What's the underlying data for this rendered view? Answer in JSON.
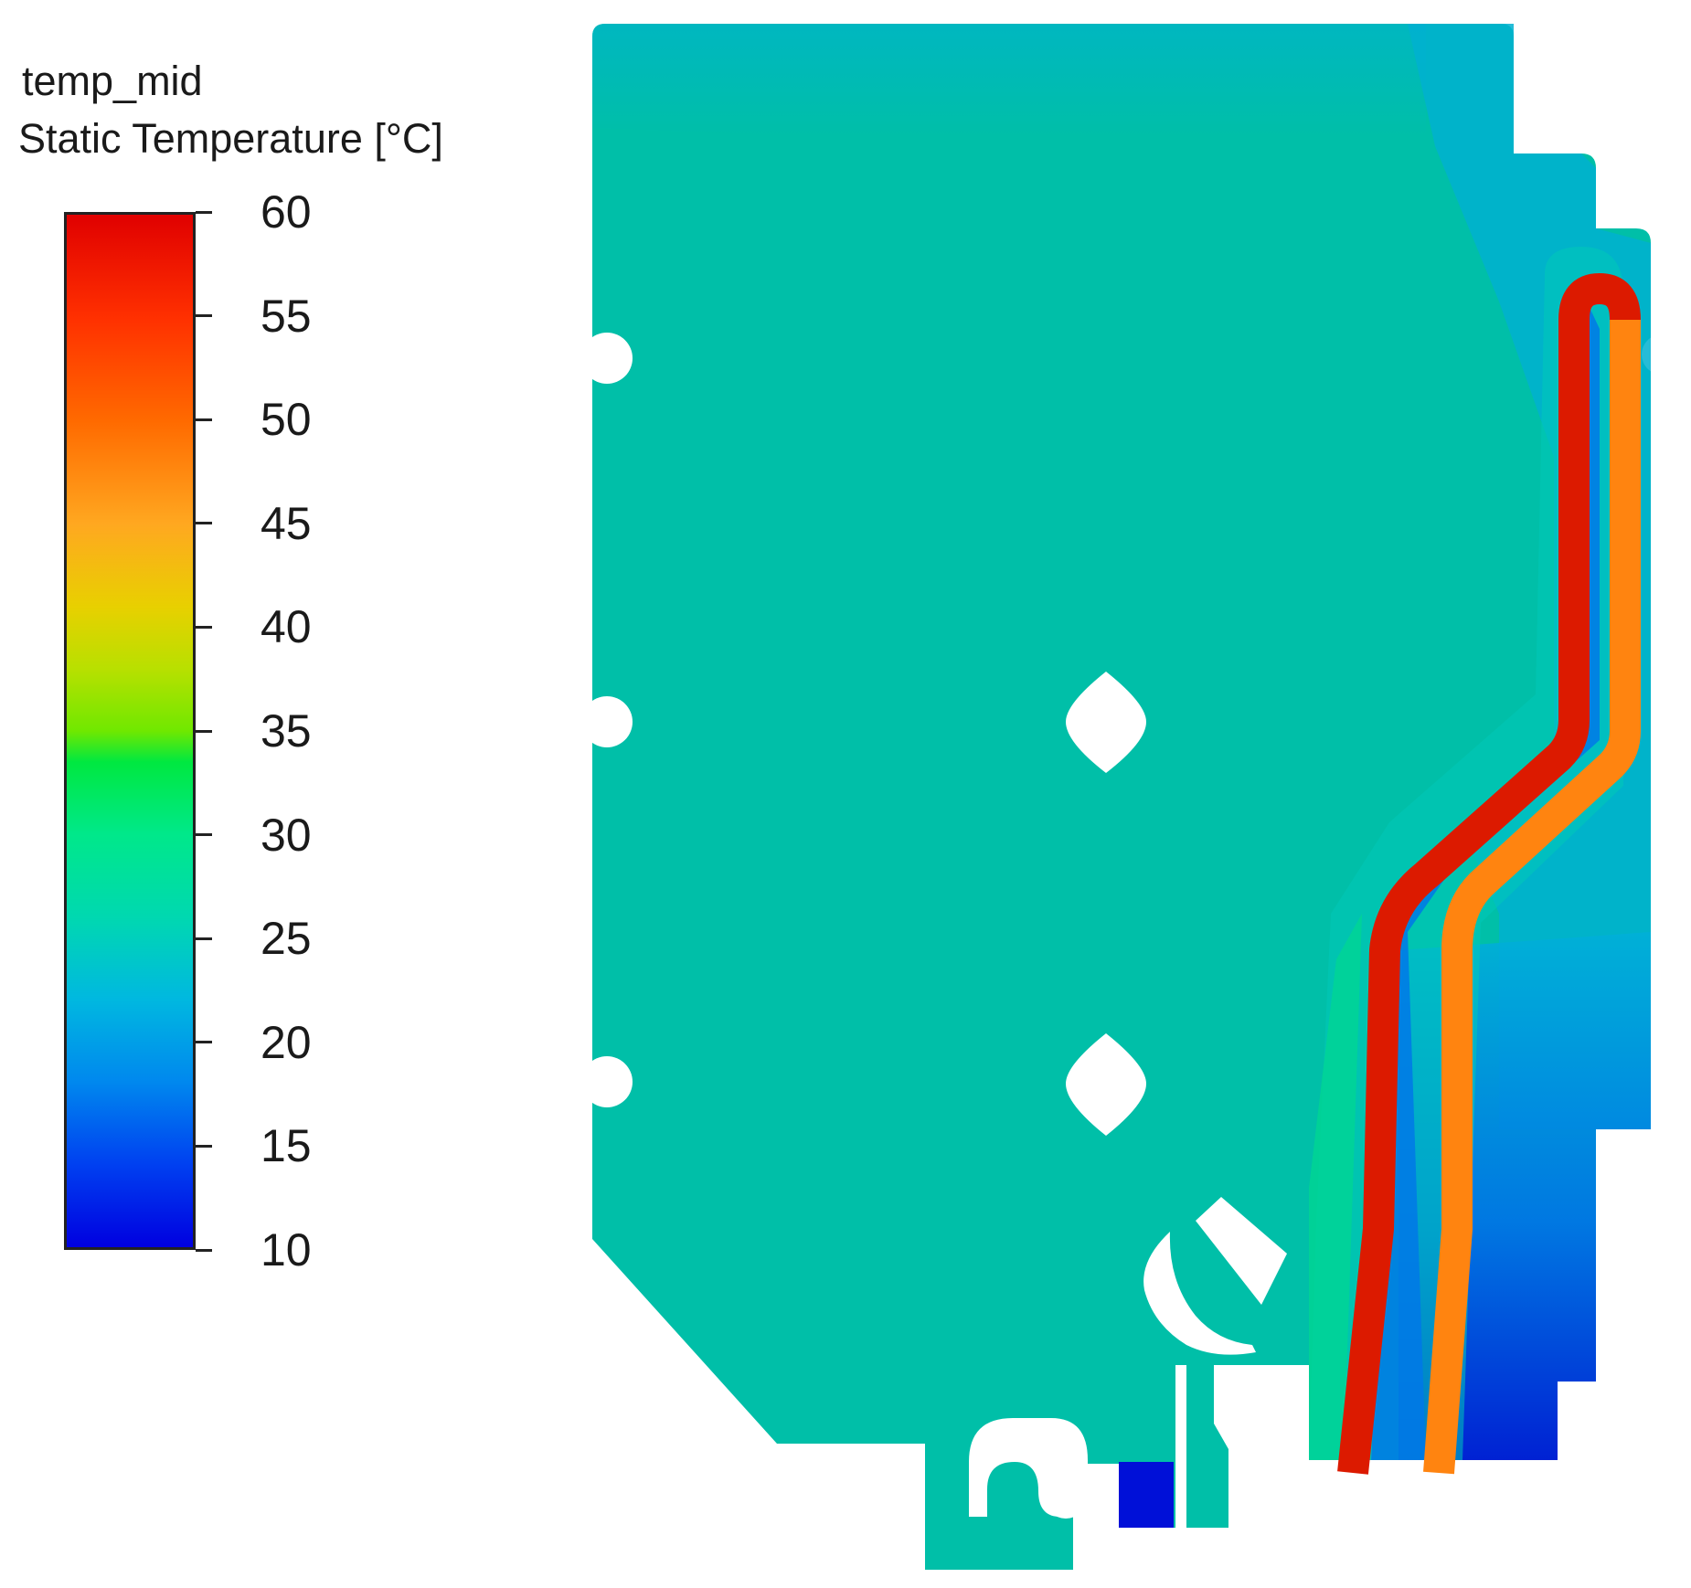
{
  "legend": {
    "title": "temp_mid",
    "subtitle": "Static Temperature [°C]",
    "ticks": [
      "60",
      "55",
      "50",
      "45",
      "40",
      "35",
      "30",
      "25",
      "20",
      "15",
      "10"
    ],
    "min": 10,
    "max": 60,
    "gradient": [
      {
        "value": 60,
        "color": "#e00000"
      },
      {
        "value": 55,
        "color": "#ff3000"
      },
      {
        "value": 50,
        "color": "#ff6a00"
      },
      {
        "value": 45,
        "color": "#ffa820"
      },
      {
        "value": 41,
        "color": "#e8d000"
      },
      {
        "value": 38,
        "color": "#b8e000"
      },
      {
        "value": 35,
        "color": "#70e800"
      },
      {
        "value": 33.5,
        "color": "#00e840"
      },
      {
        "value": 30,
        "color": "#00e88a"
      },
      {
        "value": 26,
        "color": "#00d8b0"
      },
      {
        "value": 22,
        "color": "#00b8e0"
      },
      {
        "value": 18,
        "color": "#0088ee"
      },
      {
        "value": 14,
        "color": "#0040f0"
      },
      {
        "value": 10,
        "color": "#0000e0"
      }
    ]
  },
  "field_colors": {
    "plate": "#00bfa8",
    "cool_edge": "#00b8c8",
    "cooler": "#0090e0",
    "coolest": "#0010d8",
    "warm_halo": "#00d890",
    "hot_pipe": "#dc1a00",
    "warm_pipe": "#ff8410"
  }
}
